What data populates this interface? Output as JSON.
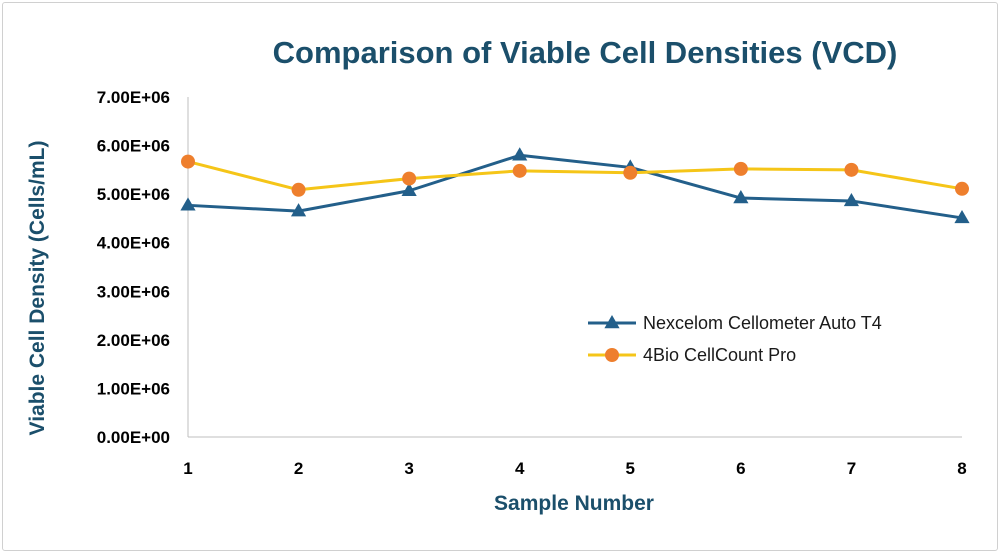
{
  "chart_data": {
    "type": "line",
    "title": "Comparison of Viable Cell Densities (VCD)",
    "xlabel": "Sample Number",
    "ylabel": "Viable Cell Density (Cells/mL)",
    "x": [
      1,
      2,
      3,
      4,
      5,
      6,
      7,
      8
    ],
    "x_tick_labels": [
      "1",
      "2",
      "3",
      "4",
      "5",
      "6",
      "7",
      "8"
    ],
    "ylim": [
      0,
      7000000
    ],
    "y_ticks": [
      0,
      1000000,
      2000000,
      3000000,
      4000000,
      5000000,
      6000000,
      7000000
    ],
    "y_tick_labels": [
      "0.00E+00",
      "1.00E+06",
      "2.00E+06",
      "3.00E+06",
      "4.00E+06",
      "5.00E+06",
      "6.00E+06",
      "7.00E+06"
    ],
    "grid": false,
    "legend_position": "right",
    "series": [
      {
        "name": "Nexcelom Cellometer Auto T4",
        "values": [
          4770000,
          4650000,
          5070000,
          5800000,
          5550000,
          4920000,
          4860000,
          4510000
        ],
        "line_color": "#235f8a",
        "marker": "triangle",
        "marker_color": "#235f8a"
      },
      {
        "name": "4Bio CellCount Pro",
        "values": [
          5670000,
          5090000,
          5320000,
          5480000,
          5440000,
          5520000,
          5500000,
          5110000
        ],
        "line_color": "#f5c518",
        "marker": "circle",
        "marker_color": "#ee7f2d"
      }
    ]
  }
}
